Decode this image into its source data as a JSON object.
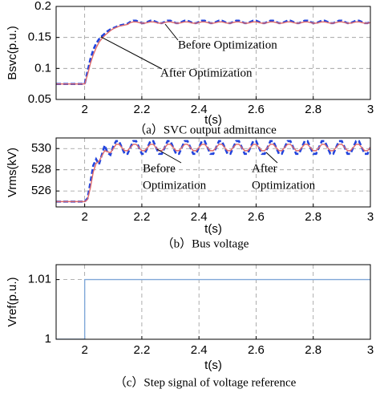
{
  "chart_data": [
    {
      "type": "line",
      "ylabel": "Bsvc(p.u.)",
      "xlabel": "t(s)",
      "caption": "（a）SVC output admittance",
      "xlim": [
        1.9,
        3
      ],
      "xticks": [
        2,
        2.2,
        2.4,
        2.6,
        2.8,
        3
      ],
      "ylim": [
        0.05,
        0.2
      ],
      "yticks": [
        0.05,
        0.1,
        0.15,
        0.2
      ],
      "grid": true,
      "annotations": [
        {
          "lines": [
            "Before Optimization"
          ]
        },
        {
          "lines": [
            "After Optimization"
          ]
        }
      ],
      "x": [
        1.9,
        2,
        2.01,
        2.02,
        2.03,
        2.04,
        2.05,
        2.06,
        2.07,
        2.08,
        2.09,
        2.1,
        2.11,
        2.12,
        2.13,
        2.14,
        2.15,
        2.16,
        2.17,
        2.18,
        2.19,
        2.2,
        2.21,
        2.22,
        2.23,
        2.24,
        2.25,
        2.26,
        2.27,
        2.28,
        2.29,
        2.3,
        2.31,
        2.32,
        2.33,
        2.34,
        2.35,
        2.36,
        2.37,
        2.38,
        2.39,
        2.4,
        2.41,
        2.42,
        2.43,
        2.44,
        2.45,
        2.46,
        2.47,
        2.48,
        2.49,
        2.5,
        2.51,
        2.52,
        2.53,
        2.54,
        2.55,
        2.56,
        2.57,
        2.58,
        2.59,
        2.6,
        2.61,
        2.62,
        2.63,
        2.64,
        2.65,
        2.66,
        2.67,
        2.68,
        2.69,
        2.7,
        2.71,
        2.72,
        2.73,
        2.74,
        2.75,
        2.76,
        2.77,
        2.78,
        2.79,
        2.8,
        2.81,
        2.82,
        2.83,
        2.84,
        2.85,
        2.86,
        2.87,
        2.88,
        2.89,
        2.9,
        2.91,
        2.92,
        2.93,
        2.94,
        2.95,
        2.96,
        2.97,
        2.98,
        2.99,
        3
      ],
      "series": [
        {
          "name": "Before Optimization",
          "color": "#2244dd",
          "dashed": true,
          "values": [
            0.075,
            0.075,
            0.095,
            0.115,
            0.13,
            0.14,
            0.147,
            0.152,
            0.156,
            0.16,
            0.163,
            0.165,
            0.167,
            0.169,
            0.17,
            0.171,
            0.172,
            0.175,
            0.177,
            0.177,
            0.175,
            0.173,
            0.173,
            0.175,
            0.177,
            0.177,
            0.175,
            0.173,
            0.173,
            0.175,
            0.177,
            0.177,
            0.175,
            0.173,
            0.173,
            0.175,
            0.177,
            0.177,
            0.175,
            0.173,
            0.173,
            0.175,
            0.177,
            0.177,
            0.175,
            0.173,
            0.173,
            0.175,
            0.177,
            0.177,
            0.175,
            0.173,
            0.173,
            0.175,
            0.177,
            0.177,
            0.175,
            0.173,
            0.173,
            0.175,
            0.177,
            0.177,
            0.175,
            0.173,
            0.173,
            0.175,
            0.177,
            0.177,
            0.175,
            0.173,
            0.173,
            0.175,
            0.177,
            0.177,
            0.175,
            0.173,
            0.173,
            0.175,
            0.177,
            0.177,
            0.175,
            0.173,
            0.173,
            0.175,
            0.177,
            0.177,
            0.175,
            0.173,
            0.173,
            0.175,
            0.177,
            0.177,
            0.175,
            0.173,
            0.173,
            0.175,
            0.177,
            0.177,
            0.175,
            0.173,
            0.173,
            0.175
          ]
        },
        {
          "name": "After Optimization",
          "color": "#e06a6a",
          "dashed": false,
          "values": [
            0.075,
            0.075,
            0.09,
            0.108,
            0.122,
            0.133,
            0.142,
            0.148,
            0.153,
            0.157,
            0.161,
            0.164,
            0.166,
            0.168,
            0.169,
            0.17,
            0.171,
            0.174,
            0.175,
            0.175,
            0.174,
            0.173,
            0.173,
            0.174,
            0.175,
            0.175,
            0.174,
            0.173,
            0.173,
            0.174,
            0.175,
            0.175,
            0.174,
            0.173,
            0.173,
            0.174,
            0.175,
            0.175,
            0.174,
            0.173,
            0.173,
            0.174,
            0.175,
            0.175,
            0.174,
            0.173,
            0.173,
            0.174,
            0.175,
            0.175,
            0.174,
            0.173,
            0.173,
            0.174,
            0.175,
            0.175,
            0.174,
            0.173,
            0.173,
            0.174,
            0.175,
            0.175,
            0.174,
            0.173,
            0.173,
            0.174,
            0.175,
            0.175,
            0.174,
            0.173,
            0.173,
            0.174,
            0.175,
            0.175,
            0.174,
            0.173,
            0.173,
            0.174,
            0.175,
            0.175,
            0.174,
            0.173,
            0.173,
            0.174,
            0.175,
            0.175,
            0.174,
            0.173,
            0.173,
            0.174,
            0.175,
            0.175,
            0.174,
            0.173,
            0.173,
            0.174,
            0.175,
            0.175,
            0.174,
            0.173,
            0.173,
            0.174
          ]
        }
      ]
    },
    {
      "type": "line",
      "ylabel": "Vrms(kV)",
      "xlabel": "t(s)",
      "caption": "（b）Bus voltage",
      "xlim": [
        1.9,
        3
      ],
      "xticks": [
        2,
        2.2,
        2.4,
        2.6,
        2.8,
        3
      ],
      "ylim": [
        524.5,
        531
      ],
      "yticks": [
        526,
        528,
        530
      ],
      "grid": true,
      "annotations": [
        {
          "lines": [
            "Before",
            "Optimization"
          ]
        },
        {
          "lines": [
            "After",
            "Optimization"
          ]
        }
      ],
      "x": [
        1.9,
        2,
        2.01,
        2.02,
        2.03,
        2.04,
        2.05,
        2.06,
        2.07,
        2.08,
        2.09,
        2.1,
        2.11,
        2.12,
        2.13,
        2.14,
        2.15,
        2.16,
        2.17,
        2.18,
        2.19,
        2.2,
        2.21,
        2.22,
        2.23,
        2.24,
        2.25,
        2.26,
        2.27,
        2.28,
        2.29,
        2.3,
        2.31,
        2.32,
        2.33,
        2.34,
        2.35,
        2.36,
        2.37,
        2.38,
        2.39,
        2.4,
        2.41,
        2.42,
        2.43,
        2.44,
        2.45,
        2.46,
        2.47,
        2.48,
        2.49,
        2.5,
        2.51,
        2.52,
        2.53,
        2.54,
        2.55,
        2.56,
        2.57,
        2.58,
        2.59,
        2.6,
        2.61,
        2.62,
        2.63,
        2.64,
        2.65,
        2.66,
        2.67,
        2.68,
        2.69,
        2.7,
        2.71,
        2.72,
        2.73,
        2.74,
        2.75,
        2.76,
        2.77,
        2.78,
        2.79,
        2.8,
        2.81,
        2.82,
        2.83,
        2.84,
        2.85,
        2.86,
        2.87,
        2.88,
        2.89,
        2.9,
        2.91,
        2.92,
        2.93,
        2.94,
        2.95,
        2.96,
        2.97,
        2.98,
        2.99,
        3
      ],
      "series": [
        {
          "name": "Before Optimization",
          "color": "#2244dd",
          "dashed": true,
          "values": [
            525.0,
            525.0,
            525.3,
            526.8,
            528.4,
            529.0,
            528.5,
            529.4,
            530.3,
            529.6,
            529.4,
            530.2,
            530.7,
            530.7,
            530.1,
            529.5,
            529.5,
            530.1,
            530.7,
            530.7,
            530.1,
            529.5,
            529.5,
            530.1,
            530.7,
            530.7,
            530.1,
            529.5,
            529.5,
            530.1,
            530.7,
            530.7,
            530.1,
            529.5,
            529.5,
            530.1,
            530.7,
            530.7,
            530.1,
            529.5,
            529.5,
            530.1,
            530.7,
            530.7,
            530.1,
            529.5,
            529.5,
            530.1,
            530.7,
            530.7,
            530.1,
            529.5,
            529.5,
            530.1,
            530.7,
            530.7,
            530.1,
            529.5,
            529.5,
            530.1,
            530.7,
            530.7,
            530.1,
            529.5,
            529.5,
            530.1,
            530.7,
            530.7,
            530.1,
            529.5,
            529.5,
            530.1,
            530.7,
            530.7,
            530.1,
            529.5,
            529.5,
            530.1,
            530.7,
            530.7,
            530.1,
            529.5,
            529.5,
            530.1,
            530.7,
            530.7,
            530.1,
            529.5,
            529.5,
            530.1,
            530.7,
            530.7,
            530.1,
            529.5,
            529.5,
            530.1,
            530.7,
            530.7,
            530.1,
            529.5,
            529.5,
            530.1
          ]
        },
        {
          "name": "After Optimization",
          "color": "#e06a6a",
          "dashed": false,
          "values": [
            525.0,
            525.0,
            525.2,
            526.3,
            527.8,
            528.6,
            528.8,
            529.3,
            529.8,
            529.7,
            529.6,
            530.0,
            530.4,
            530.4,
            530.1,
            529.8,
            529.8,
            530.1,
            530.4,
            530.4,
            530.1,
            529.8,
            529.8,
            530.1,
            530.4,
            530.4,
            530.1,
            529.8,
            529.8,
            530.1,
            530.4,
            530.4,
            530.1,
            529.8,
            529.8,
            530.1,
            530.4,
            530.4,
            530.1,
            529.8,
            529.8,
            530.1,
            530.4,
            530.4,
            530.1,
            529.8,
            529.8,
            530.1,
            530.4,
            530.4,
            530.1,
            529.8,
            529.8,
            530.1,
            530.4,
            530.4,
            530.1,
            529.8,
            529.8,
            530.1,
            530.4,
            530.4,
            530.1,
            529.8,
            529.8,
            530.1,
            530.4,
            530.4,
            530.1,
            529.8,
            529.8,
            530.1,
            530.4,
            530.4,
            530.1,
            529.8,
            529.8,
            530.1,
            530.4,
            530.4,
            530.1,
            529.8,
            529.8,
            530.1,
            530.4,
            530.4,
            530.1,
            529.8,
            529.8,
            530.1,
            530.4,
            530.4,
            530.1,
            529.8,
            529.8,
            530.1,
            530.4,
            530.4,
            530.1,
            529.8,
            529.8,
            530.1
          ]
        }
      ]
    },
    {
      "type": "line",
      "ylabel": "Vref(p.u.)",
      "xlabel": "t(s)",
      "caption": "（c）Step signal of voltage reference",
      "xlim": [
        1.9,
        3
      ],
      "xticks": [
        2,
        2.2,
        2.4,
        2.6,
        2.8,
        3
      ],
      "ylim": [
        1,
        1.0125
      ],
      "yticks": [
        1,
        1.01
      ],
      "grid": true,
      "annotations": [],
      "x": [
        1.9,
        2,
        2,
        3
      ],
      "series": [
        {
          "color": "#7fa7d8",
          "dashed": false,
          "values": [
            1,
            1,
            1.01,
            1.01
          ]
        }
      ]
    }
  ]
}
